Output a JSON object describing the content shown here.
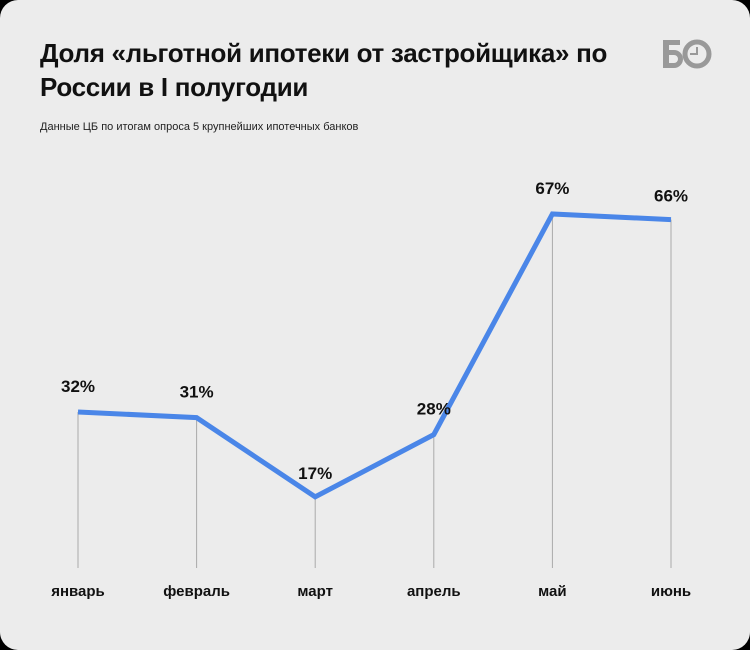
{
  "title": "Доля «льготной ипотеки от застройщика» по России в I полугодии",
  "subtitle": "Данные ЦБ по итогам опроса 5 крупнейших ипотечных банков",
  "logo_text": "БО",
  "colors": {
    "line": "#4a86e8",
    "background": "#ececec",
    "logo": "#999999"
  },
  "chart_data": {
    "type": "line",
    "title": "Доля «льготной ипотеки от застройщика» по России в I полугодии",
    "subtitle": "Данные ЦБ по итогам опроса 5 крупнейших ипотечных банков",
    "xlabel": "",
    "ylabel": "",
    "categories": [
      "январь",
      "февраль",
      "март",
      "апрель",
      "май",
      "июнь"
    ],
    "values": [
      32,
      31,
      17,
      28,
      67,
      66
    ],
    "data_labels": [
      "32%",
      "31%",
      "17%",
      "28%",
      "67%",
      "66%"
    ],
    "ylim": [
      0,
      100
    ],
    "grid": false
  }
}
